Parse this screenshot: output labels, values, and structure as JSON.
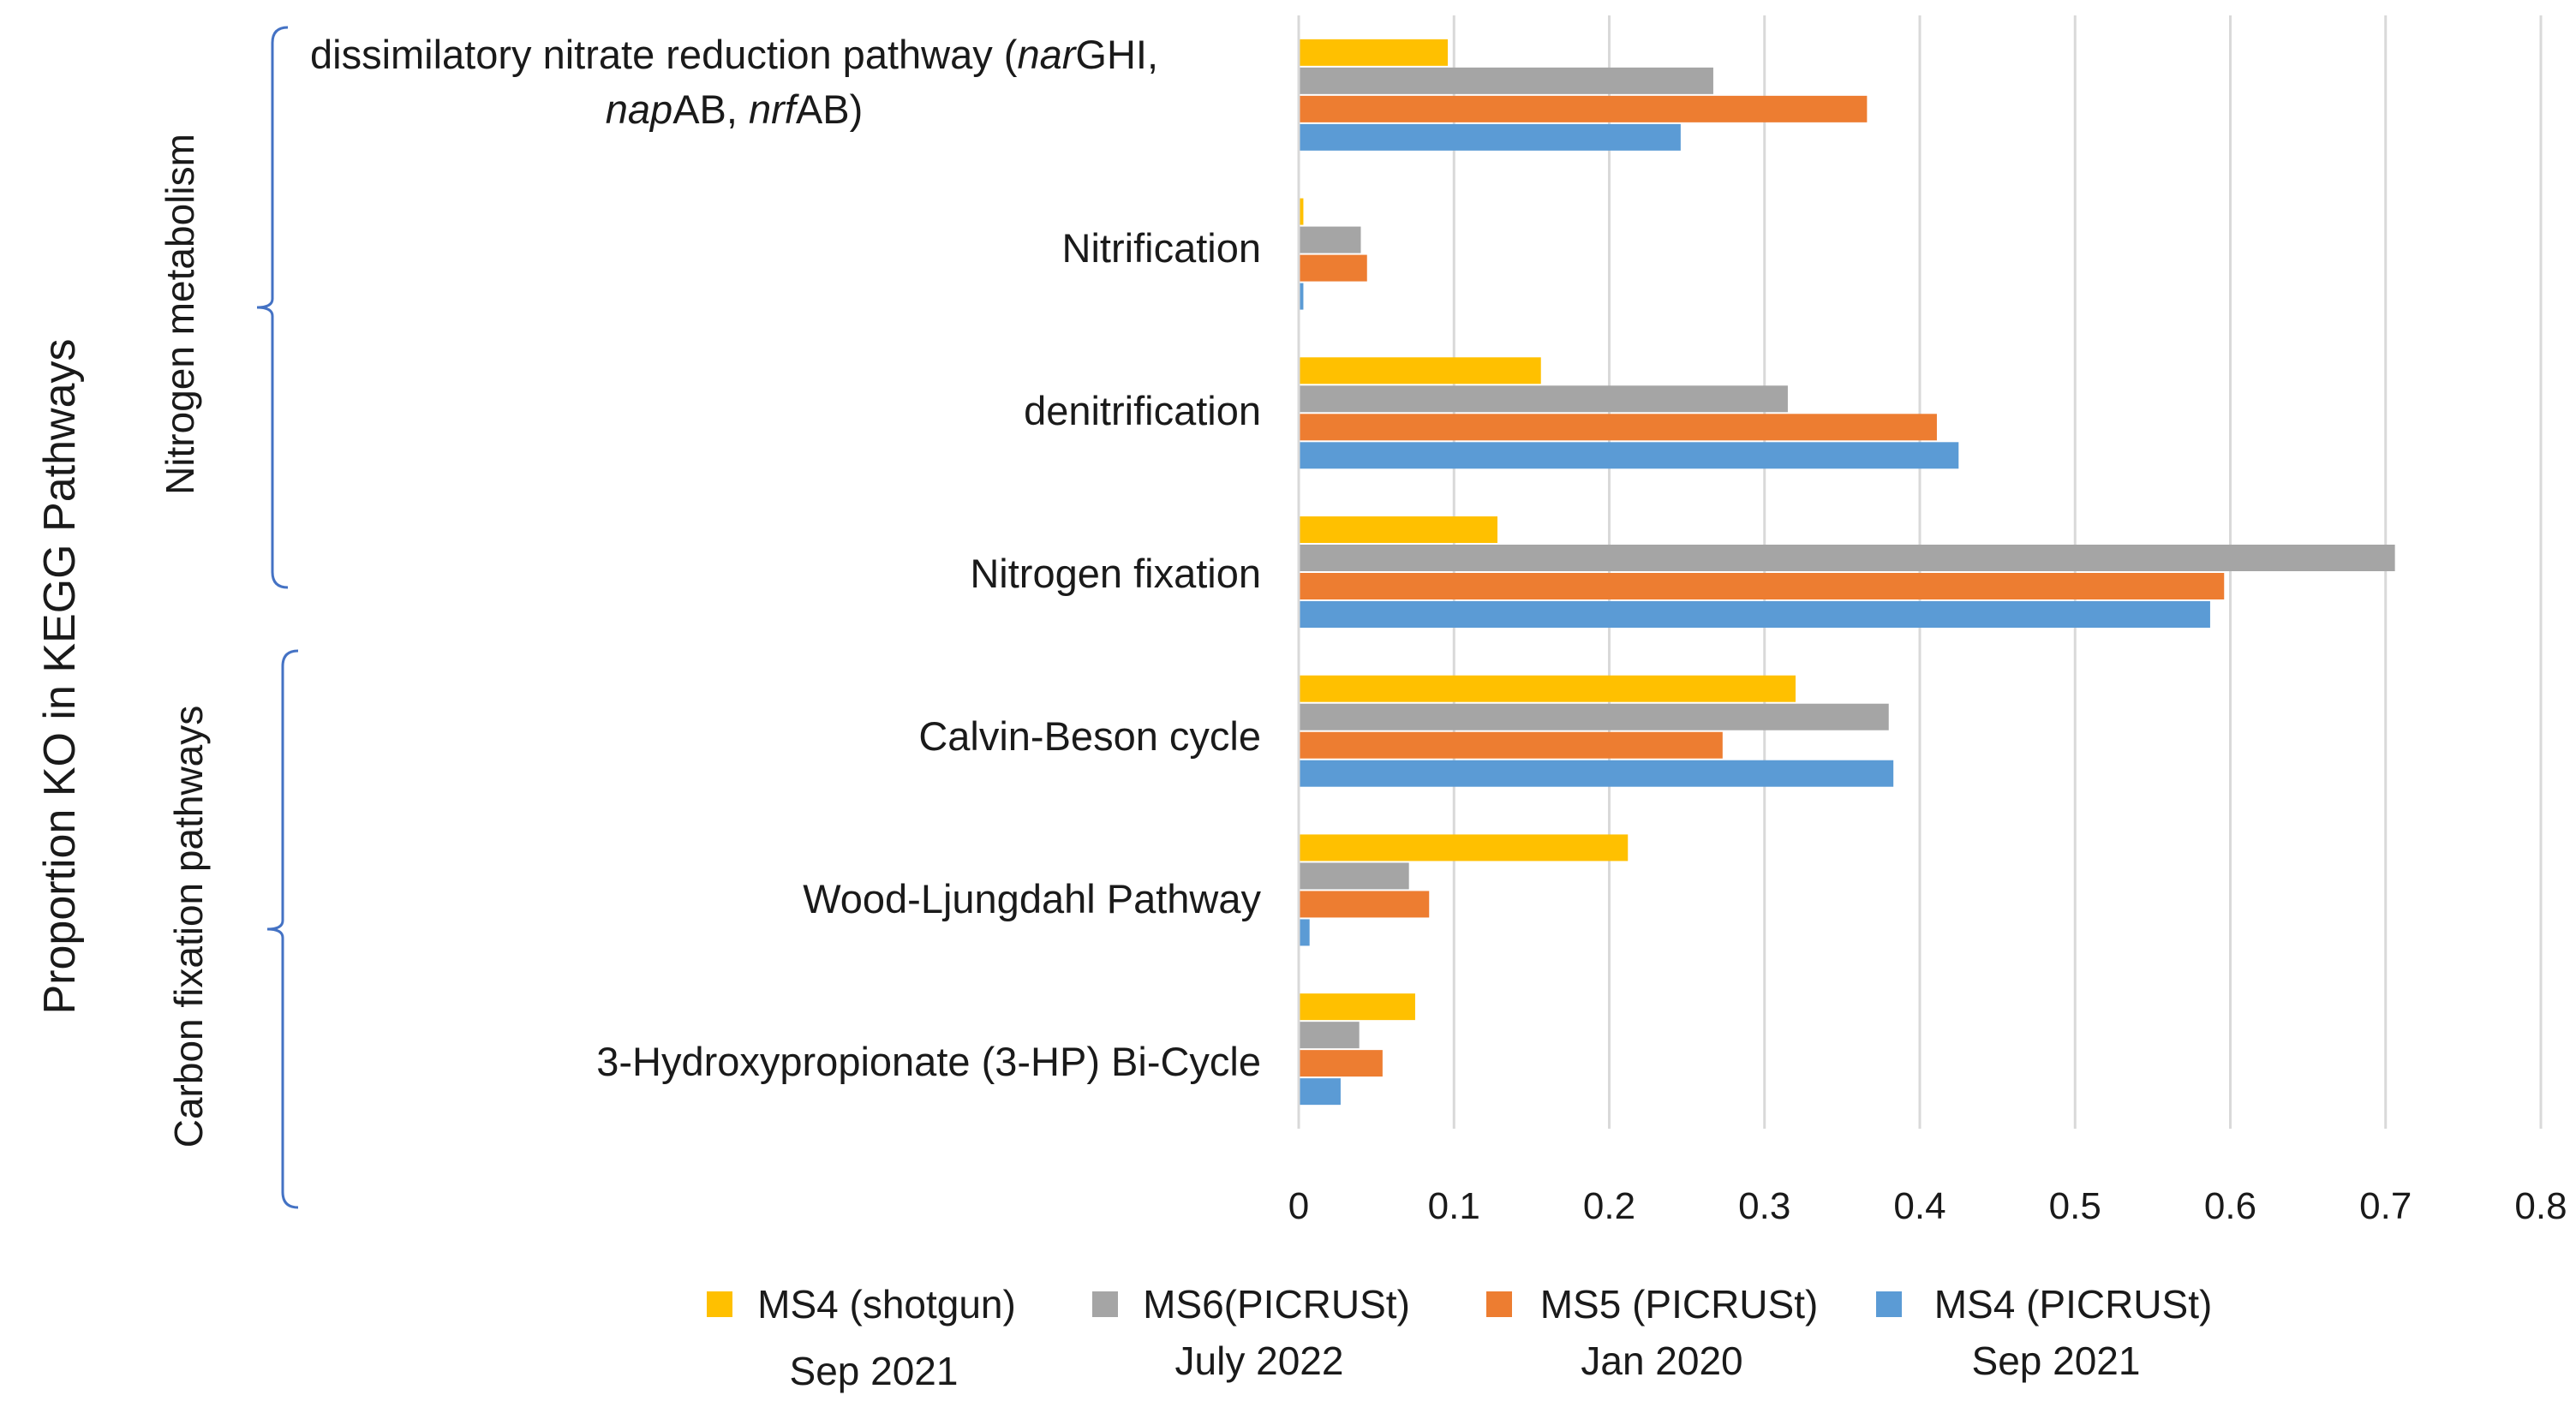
{
  "chart_data": {
    "type": "bar",
    "orientation": "horizontal",
    "title": "",
    "xlabel": "",
    "ylabel": "Proportion KO in KEGG Pathways",
    "xlim": [
      0,
      0.8
    ],
    "xticks": [
      "0",
      "0.1",
      "0.2",
      "0.3",
      "0.4",
      "0.5",
      "0.6",
      "0.7",
      "0.8"
    ],
    "grid": "vertical",
    "legend_position": "bottom",
    "categories": [
      "dissimilatory nitrate reduction pathway (narGHI, napAB, nrfAB)",
      "Nitrification",
      "denitrification",
      "Nitrogen fixation",
      "Calvin-Beson cycle",
      "Wood-Ljungdahl Pathway",
      "3-Hydroxypropionate (3-HP) Bi-Cycle"
    ],
    "category_parts": {
      "c0_line1_a": "dissimilatory nitrate reduction pathway (",
      "c0_line1_b": "nar",
      "c0_line1_c": "GHI,",
      "c0_line2_a": "nap",
      "c0_line2_b": "AB, ",
      "c0_line2_c": "nrf",
      "c0_line2_d": "AB)"
    },
    "groups": [
      {
        "label": "Nitrogen metabolism",
        "categories": [
          0,
          1,
          2,
          3
        ]
      },
      {
        "label": "Carbon fixation pathways",
        "categories": [
          4,
          5,
          6
        ]
      }
    ],
    "series": [
      {
        "name": "MS4 (shotgun)",
        "date": "Sep 2021",
        "color": "#FFC000",
        "values": [
          0.096,
          0.003,
          0.156,
          0.128,
          0.32,
          0.212,
          0.075
        ]
      },
      {
        "name": "MS6(PICRUSt)",
        "date": "July 2022",
        "color": "#A5A5A5",
        "values": [
          0.267,
          0.04,
          0.315,
          0.706,
          0.38,
          0.071,
          0.039
        ]
      },
      {
        "name": "MS5 (PICRUSt)",
        "date": "Jan 2020",
        "color": "#ED7D31",
        "values": [
          0.366,
          0.044,
          0.411,
          0.596,
          0.273,
          0.084,
          0.054
        ]
      },
      {
        "name": "MS4 (PICRUSt)",
        "date": "Sep 2021",
        "color": "#5B9BD5",
        "values": [
          0.246,
          0.003,
          0.425,
          0.587,
          0.383,
          0.007,
          0.027
        ]
      }
    ]
  }
}
